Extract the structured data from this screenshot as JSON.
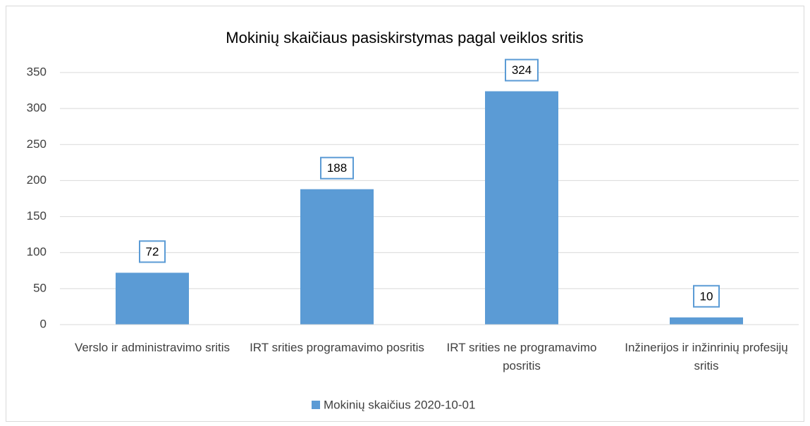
{
  "chart_data": {
    "type": "bar",
    "title": "Mokinių skaičiaus pasiskirstymas pagal veiklos sritis",
    "categories": [
      "Verslo ir administravimo sritis",
      "IRT srities programavimo posritis",
      "IRT srities ne programavimo posritis",
      "Inžinerijos ir inžinrinių profesijų sritis"
    ],
    "series": [
      {
        "name": "Mokinių skaičius 2020-10-01",
        "color": "#5b9bd5",
        "values": [
          72,
          188,
          324,
          10
        ]
      }
    ],
    "ylim": [
      0,
      350
    ],
    "yticks": [
      0,
      50,
      100,
      150,
      200,
      250,
      300,
      350
    ],
    "grid": true,
    "legend": "bottom"
  }
}
